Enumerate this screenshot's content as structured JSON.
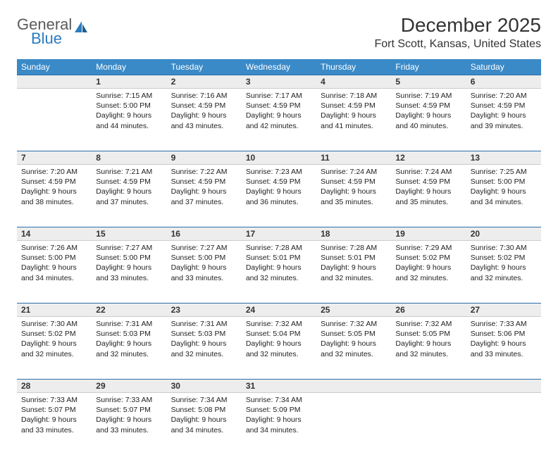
{
  "logo": {
    "line1": "General",
    "line2": "Blue"
  },
  "title": "December 2025",
  "location": "Fort Scott, Kansas, United States",
  "header_bg": "#3a8ac8",
  "week_border": "#2b6fa8",
  "daynum_bg": "#ededed",
  "days": [
    "Sunday",
    "Monday",
    "Tuesday",
    "Wednesday",
    "Thursday",
    "Friday",
    "Saturday"
  ],
  "weeks": [
    {
      "nums": [
        "",
        "1",
        "2",
        "3",
        "4",
        "5",
        "6"
      ],
      "cells": [
        null,
        {
          "sunrise": "7:15 AM",
          "sunset": "5:00 PM",
          "daylight": "9 hours and 44 minutes."
        },
        {
          "sunrise": "7:16 AM",
          "sunset": "4:59 PM",
          "daylight": "9 hours and 43 minutes."
        },
        {
          "sunrise": "7:17 AM",
          "sunset": "4:59 PM",
          "daylight": "9 hours and 42 minutes."
        },
        {
          "sunrise": "7:18 AM",
          "sunset": "4:59 PM",
          "daylight": "9 hours and 41 minutes."
        },
        {
          "sunrise": "7:19 AM",
          "sunset": "4:59 PM",
          "daylight": "9 hours and 40 minutes."
        },
        {
          "sunrise": "7:20 AM",
          "sunset": "4:59 PM",
          "daylight": "9 hours and 39 minutes."
        }
      ]
    },
    {
      "nums": [
        "7",
        "8",
        "9",
        "10",
        "11",
        "12",
        "13"
      ],
      "cells": [
        {
          "sunrise": "7:20 AM",
          "sunset": "4:59 PM",
          "daylight": "9 hours and 38 minutes."
        },
        {
          "sunrise": "7:21 AM",
          "sunset": "4:59 PM",
          "daylight": "9 hours and 37 minutes."
        },
        {
          "sunrise": "7:22 AM",
          "sunset": "4:59 PM",
          "daylight": "9 hours and 37 minutes."
        },
        {
          "sunrise": "7:23 AM",
          "sunset": "4:59 PM",
          "daylight": "9 hours and 36 minutes."
        },
        {
          "sunrise": "7:24 AM",
          "sunset": "4:59 PM",
          "daylight": "9 hours and 35 minutes."
        },
        {
          "sunrise": "7:24 AM",
          "sunset": "4:59 PM",
          "daylight": "9 hours and 35 minutes."
        },
        {
          "sunrise": "7:25 AM",
          "sunset": "5:00 PM",
          "daylight": "9 hours and 34 minutes."
        }
      ]
    },
    {
      "nums": [
        "14",
        "15",
        "16",
        "17",
        "18",
        "19",
        "20"
      ],
      "cells": [
        {
          "sunrise": "7:26 AM",
          "sunset": "5:00 PM",
          "daylight": "9 hours and 34 minutes."
        },
        {
          "sunrise": "7:27 AM",
          "sunset": "5:00 PM",
          "daylight": "9 hours and 33 minutes."
        },
        {
          "sunrise": "7:27 AM",
          "sunset": "5:00 PM",
          "daylight": "9 hours and 33 minutes."
        },
        {
          "sunrise": "7:28 AM",
          "sunset": "5:01 PM",
          "daylight": "9 hours and 32 minutes."
        },
        {
          "sunrise": "7:28 AM",
          "sunset": "5:01 PM",
          "daylight": "9 hours and 32 minutes."
        },
        {
          "sunrise": "7:29 AM",
          "sunset": "5:02 PM",
          "daylight": "9 hours and 32 minutes."
        },
        {
          "sunrise": "7:30 AM",
          "sunset": "5:02 PM",
          "daylight": "9 hours and 32 minutes."
        }
      ]
    },
    {
      "nums": [
        "21",
        "22",
        "23",
        "24",
        "25",
        "26",
        "27"
      ],
      "cells": [
        {
          "sunrise": "7:30 AM",
          "sunset": "5:02 PM",
          "daylight": "9 hours and 32 minutes."
        },
        {
          "sunrise": "7:31 AM",
          "sunset": "5:03 PM",
          "daylight": "9 hours and 32 minutes."
        },
        {
          "sunrise": "7:31 AM",
          "sunset": "5:03 PM",
          "daylight": "9 hours and 32 minutes."
        },
        {
          "sunrise": "7:32 AM",
          "sunset": "5:04 PM",
          "daylight": "9 hours and 32 minutes."
        },
        {
          "sunrise": "7:32 AM",
          "sunset": "5:05 PM",
          "daylight": "9 hours and 32 minutes."
        },
        {
          "sunrise": "7:32 AM",
          "sunset": "5:05 PM",
          "daylight": "9 hours and 32 minutes."
        },
        {
          "sunrise": "7:33 AM",
          "sunset": "5:06 PM",
          "daylight": "9 hours and 33 minutes."
        }
      ]
    },
    {
      "nums": [
        "28",
        "29",
        "30",
        "31",
        "",
        "",
        ""
      ],
      "cells": [
        {
          "sunrise": "7:33 AM",
          "sunset": "5:07 PM",
          "daylight": "9 hours and 33 minutes."
        },
        {
          "sunrise": "7:33 AM",
          "sunset": "5:07 PM",
          "daylight": "9 hours and 33 minutes."
        },
        {
          "sunrise": "7:34 AM",
          "sunset": "5:08 PM",
          "daylight": "9 hours and 34 minutes."
        },
        {
          "sunrise": "7:34 AM",
          "sunset": "5:09 PM",
          "daylight": "9 hours and 34 minutes."
        },
        null,
        null,
        null
      ]
    }
  ],
  "labels": {
    "sunrise": "Sunrise:",
    "sunset": "Sunset:",
    "daylight": "Daylight:"
  }
}
